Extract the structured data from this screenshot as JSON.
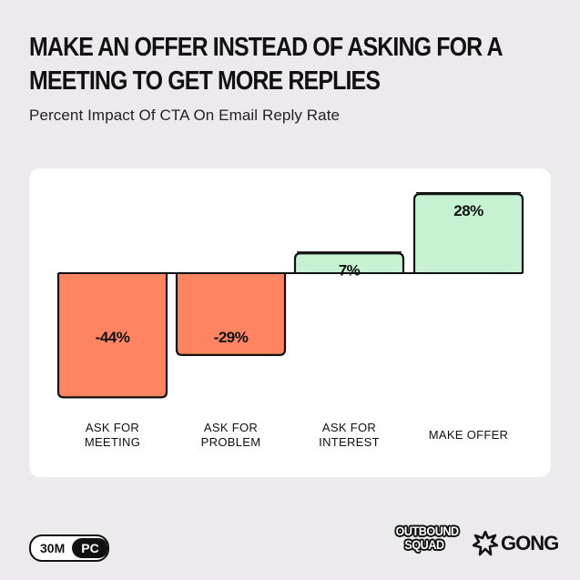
{
  "title_lines": [
    "MAKE AN OFFER INSTEAD OF ASKING FOR A",
    "MEETING TO GET MORE REPLIES"
  ],
  "subtitle": "Percent Impact Of CTA On Email Reply Rate",
  "chart_data": {
    "type": "bar",
    "title": "MAKE AN OFFER INSTEAD OF ASKING FOR A MEETING TO GET MORE REPLIES",
    "subtitle": "Percent Impact Of CTA On Email Reply Rate",
    "categories": [
      [
        "ASK FOR",
        "MEETING"
      ],
      [
        "ASK FOR",
        "PROBLEM"
      ],
      [
        "ASK FOR",
        "INTEREST"
      ],
      [
        "MAKE OFFER"
      ]
    ],
    "values": [
      -44,
      -29,
      7,
      28
    ],
    "labels": [
      "-44%",
      "-29%",
      "7%",
      "28%"
    ],
    "colors": {
      "negative": "#ff8461",
      "positive": "#c6f2d3",
      "outline": "#111111"
    },
    "ylim": [
      -44,
      28
    ],
    "xlabel": "",
    "ylabel": "",
    "grid": false,
    "legend": "none"
  },
  "footer": {
    "pill_left": "30M",
    "pill_right": "PC",
    "logo_outbound_lines": [
      "OUTBOUND",
      "SQUAD"
    ],
    "logo_gong": "GONG",
    "gong_icon": "starburst-icon"
  }
}
